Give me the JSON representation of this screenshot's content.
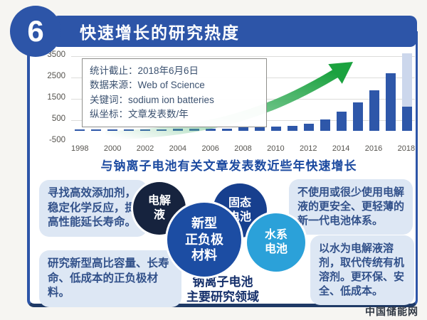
{
  "header": {
    "badge_number": "6",
    "title": "快速增长的研究热度"
  },
  "chart_notes": {
    "lines": [
      "统计截止：2018年6月6日",
      "数据来源：Web of Science",
      "关键词：sodium ion batteries",
      "纵坐标：文章发表数/年"
    ]
  },
  "chart_data": {
    "type": "bar",
    "title": "与钠离子电池有关文章发表数近些年快速增长",
    "ylabel": "文章发表数/年",
    "xlabel": "",
    "years": [
      "1998",
      "1999",
      "2000",
      "2001",
      "2002",
      "2003",
      "2004",
      "2005",
      "2006",
      "2007",
      "2008",
      "2009",
      "2010",
      "2011",
      "2012",
      "2013",
      "2014",
      "2015",
      "2016",
      "2017",
      "2018"
    ],
    "xtick_labels": [
      "1998",
      "2000",
      "2002",
      "2004",
      "2006",
      "2008",
      "2010",
      "2012",
      "2014",
      "2016",
      "2018"
    ],
    "values": [
      60,
      60,
      70,
      65,
      75,
      80,
      85,
      90,
      100,
      110,
      160,
      170,
      185,
      230,
      330,
      550,
      900,
      1350,
      1900,
      2700,
      1150
    ],
    "projected": {
      "year": "2018",
      "value": 3650,
      "color": "#ccd7ec"
    },
    "yticks": [
      3500,
      2500,
      1500,
      500,
      -500
    ],
    "ylim": [
      -500,
      3700
    ],
    "grid": true,
    "legend": "none",
    "bar_color": "#2e57a9"
  },
  "clusters": {
    "circles": [
      {
        "label": "电解\n液",
        "color": "#16233e"
      },
      {
        "label": "新型\n正负极\n材料",
        "color": "#1c4da3"
      },
      {
        "label": "固态\n电池",
        "color": "#173f8e"
      },
      {
        "label": "水系\n电池",
        "color": "#2ba1d9"
      }
    ],
    "left_notes": [
      "寻找高效添加剂，稳定化学反应，提高性能延长寿命。",
      "研究新型高比容量、长寿命、低成本的正负极材料。"
    ],
    "right_notes": [
      "不使用或很少使用电解液的更安全、更轻薄的新一代电池体系。",
      "以水为电解液溶剂，取代传统有机溶剂。更环保、安全、低成本。"
    ],
    "center_label": "钠离子电池\n主要研究领域"
  },
  "footer": {
    "watermark": "中国储能网"
  },
  "palette": {
    "brand_blue": "#2d55a8",
    "frame_navy": "#1f3a66",
    "caption_blue": "#1c4aa0",
    "box_bg": "#dde7f4",
    "box_text": "#32518a",
    "arrow_green": "#1ba23f",
    "gridline_gray": "#dcdcda"
  }
}
